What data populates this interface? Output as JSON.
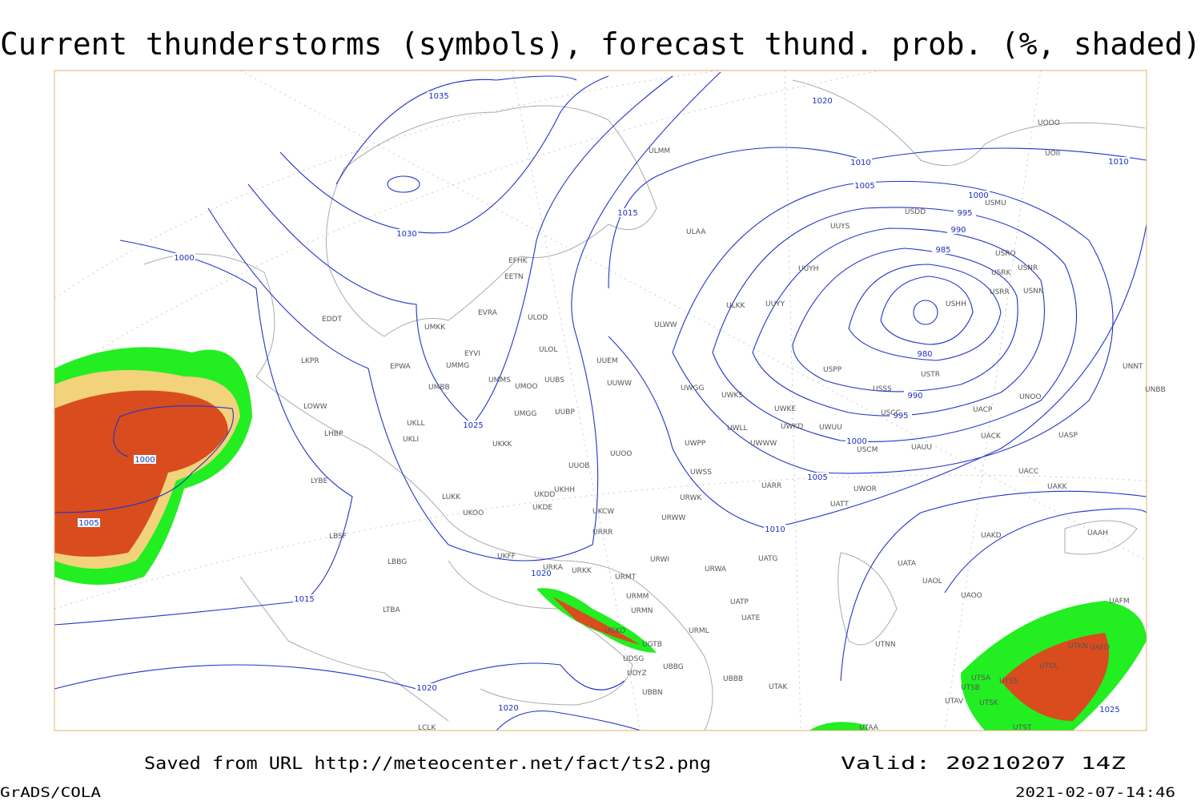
{
  "header": {
    "title": "Current thunderstorms (symbols), forecast thund. prob. (%, shaded)"
  },
  "map": {
    "isobar_labels": [
      "1035",
      "1030",
      "1025",
      "1020",
      "1015",
      "1000",
      "1000",
      "1005",
      "1015",
      "1020",
      "1020",
      "1010",
      "1005",
      "1000",
      "995",
      "990",
      "980",
      "985",
      "990",
      "995",
      "1000",
      "1005",
      "1010",
      "1020",
      "1010",
      "1025"
    ],
    "stations": [
      "ULMM",
      "ULAA",
      "EFHK",
      "EETN",
      "EVRA",
      "ULOD",
      "UMKK",
      "EYVI",
      "UMMG",
      "ULOL",
      "UUEM",
      "UMMS",
      "UMOO",
      "UUBS",
      "UUWW",
      "UMGG",
      "UUBP",
      "UKLL",
      "UKLI",
      "UKKK",
      "UUOO",
      "UUOB",
      "UKHH",
      "UKDD",
      "UKDE",
      "LUKK",
      "UKOO",
      "UKCW",
      "URRR",
      "UKFF",
      "URKA",
      "URKK",
      "URWI",
      "URMT",
      "URMM",
      "URMN",
      "UGKO",
      "UGTB",
      "UDSG",
      "UBBG",
      "UDYZ",
      "UBBN",
      "UBBB",
      "URML",
      "URWA",
      "UATG",
      "UATP",
      "UATE",
      "UTAK",
      "URWW",
      "URWK",
      "UWSS",
      "UARR",
      "UWPP",
      "UWWW",
      "UWLL",
      "UWKE",
      "UWKD",
      "UWUU",
      "UWGG",
      "UWKS",
      "UUYY",
      "ULKK",
      "ULWW",
      "UUYH",
      "UUYS",
      "USDD",
      "USMU",
      "USRO",
      "USRK",
      "USNR",
      "USNN",
      "USRR",
      "USHH",
      "USPP",
      "USTR",
      "USSS",
      "USCC",
      "UACP",
      "UNOO",
      "UACK",
      "UASP",
      "UAUU",
      "USCM",
      "UACC",
      "UAKK",
      "UWOR",
      "UATT",
      "UAKD",
      "UATA",
      "UAOL",
      "UAOO",
      "UAAH",
      "UAFM",
      "UTNN",
      "UTSA",
      "UTSS",
      "UTSB",
      "UTAV",
      "UTSK",
      "UTST",
      "UTDL",
      "UTKN",
      "UAFO",
      "UNNT",
      "UNBB",
      "UOOO",
      "UOII",
      "EDDT",
      "LKPR",
      "LOWW",
      "LHBP",
      "LYBE",
      "LBSF",
      "LBBG",
      "LTBA",
      "LCLK",
      "UTAA",
      "EPWA",
      "UMBB"
    ]
  },
  "footer": {
    "source": "Saved from URL http://meteocenter.net/fact/ts2.png",
    "valid": "Valid: 20210207 14Z",
    "software": "GrADS/COLA",
    "timestamp": "2021-02-07-14:46"
  }
}
